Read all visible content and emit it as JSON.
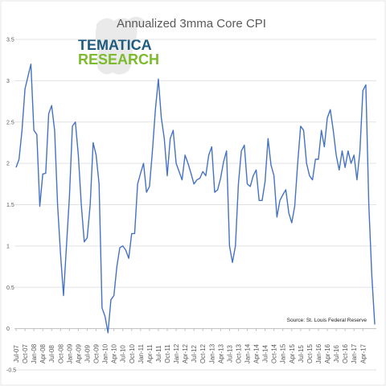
{
  "logo": {
    "line1": "TEMATICA",
    "line2": "RESEARCH"
  },
  "chart_data": {
    "type": "line",
    "title": "Annualized 3mma Core CPI",
    "source": "Source: St. Louis Federal Reserve",
    "xlabel": "",
    "ylabel": "",
    "ylim": [
      -0.5,
      3.5
    ],
    "yticks": [
      -0.5,
      0,
      0.5,
      1,
      1.5,
      2,
      2.5,
      3,
      3.5
    ],
    "grid": "horizontal",
    "line_color": "#4472c4",
    "xtick_labels": [
      "Jul-07",
      "Oct-07",
      "Jan-08",
      "Apr-08",
      "Jul-08",
      "Oct-08",
      "Jan-09",
      "Apr-09",
      "Jul-09",
      "Oct-09",
      "Jan-10",
      "Apr-10",
      "Jul-10",
      "Oct-10",
      "Jan-11",
      "Apr-11",
      "Jul-11",
      "Oct-11",
      "Jan-12",
      "Apr-12",
      "Jul-12",
      "Oct-12",
      "Jan-13",
      "Apr-13",
      "Jul-13",
      "Oct-13",
      "Jan-14",
      "Apr-14",
      "Jul-14",
      "Oct-14",
      "Jan-15",
      "Apr-15",
      "Jul-15",
      "Oct-15",
      "Jan-16",
      "Apr-16",
      "Jul-16",
      "Oct-16",
      "Jan-17",
      "Apr-17"
    ],
    "x_start": "Jul-07",
    "series": [
      {
        "values": [
          1.95,
          2.05,
          2.4,
          2.9,
          3.05,
          3.2,
          2.4,
          2.35,
          1.48,
          1.87,
          1.88,
          2.6,
          2.7,
          2.4,
          1.5,
          0.9,
          0.4,
          1.0,
          1.6,
          2.45,
          2.5,
          2.1,
          1.5,
          1.05,
          1.1,
          1.5,
          2.25,
          2.1,
          1.75,
          0.25,
          0.15,
          -0.05,
          0.35,
          0.4,
          0.75,
          0.98,
          1.0,
          0.95,
          0.85,
          1.15,
          1.15,
          1.75,
          1.88,
          2.0,
          1.65,
          1.72,
          2.15,
          2.65,
          3.02,
          2.55,
          2.3,
          1.85,
          2.3,
          2.4,
          2.0,
          1.9,
          1.8,
          2.1,
          2.0,
          1.88,
          1.75,
          1.8,
          1.82,
          1.9,
          1.85,
          2.1,
          2.2,
          1.65,
          1.68,
          1.82,
          2.02,
          2.15,
          1.0,
          0.8,
          1.0,
          1.75,
          2.15,
          2.22,
          1.75,
          1.72,
          1.85,
          1.92,
          1.55,
          1.55,
          1.78,
          2.3,
          1.98,
          1.85,
          1.35,
          1.55,
          1.62,
          1.68,
          1.4,
          1.28,
          1.48,
          2.0,
          2.45,
          2.4,
          2.0,
          1.85,
          1.8,
          2.05,
          2.05,
          2.4,
          2.2,
          2.55,
          2.65,
          2.4,
          2.1,
          1.92,
          2.15,
          1.95,
          2.15,
          2.0,
          2.1,
          1.8,
          2.15,
          2.88,
          2.95,
          1.5,
          0.65,
          0.05
        ]
      }
    ]
  }
}
